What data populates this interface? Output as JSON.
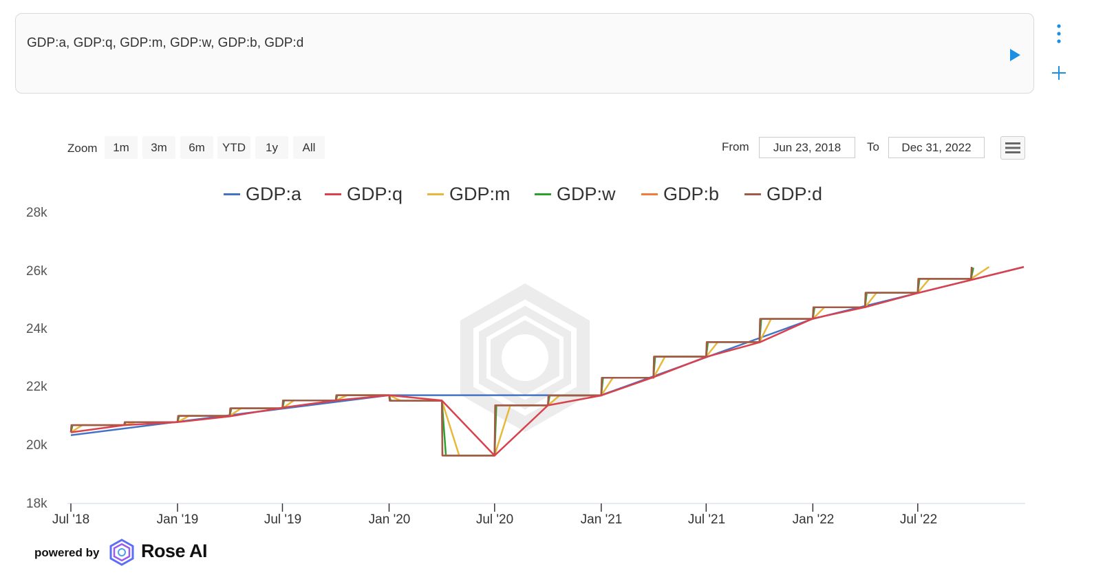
{
  "query": {
    "text": "GDP:a, GDP:q, GDP:m, GDP:w, GDP:b, GDP:d"
  },
  "toolbar": {
    "zoom_label": "Zoom",
    "zoom_buttons": [
      "1m",
      "3m",
      "6m",
      "YTD",
      "1y",
      "All"
    ],
    "from_label": "From",
    "from_value": "Jun 23, 2018",
    "to_label": "To",
    "to_value": "Dec 31, 2022"
  },
  "brand": {
    "powered_by": "powered by",
    "name": "Rose AI"
  },
  "icons": {
    "run": "play-icon",
    "side_menu": "kebab-icon",
    "add": "plus-icon",
    "chart_menu": "hamburger-icon",
    "logo": "rose-ai-logo",
    "watermark": "rose-ai-watermark"
  },
  "colors": {
    "accent": "#1a8fe3",
    "GDP:a": "#4472c4",
    "GDP:q": "#d9414c",
    "GDP:m": "#e8b83a",
    "GDP:w": "#2ca02c",
    "GDP:b": "#f07b3c",
    "GDP:d": "#a05a48"
  },
  "chart_data": {
    "type": "line",
    "title": "",
    "xlabel": "",
    "ylabel": "",
    "x_range": [
      "2018-07-01",
      "2022-12-31"
    ],
    "ylim": [
      18000,
      28000
    ],
    "y_ticks": [
      "18k",
      "20k",
      "22k",
      "24k",
      "26k",
      "28k"
    ],
    "x_ticks": [
      {
        "label": "Jul '18",
        "date": "2018-07-01"
      },
      {
        "label": "Jan '19",
        "date": "2019-01-01"
      },
      {
        "label": "Jul '19",
        "date": "2019-07-01"
      },
      {
        "label": "Jan '20",
        "date": "2020-01-01"
      },
      {
        "label": "Jul '20",
        "date": "2020-07-01"
      },
      {
        "label": "Jan '21",
        "date": "2021-01-01"
      },
      {
        "label": "Jul '21",
        "date": "2021-07-01"
      },
      {
        "label": "Jan '22",
        "date": "2022-01-01"
      },
      {
        "label": "Jul '22",
        "date": "2022-07-01"
      }
    ],
    "legend_position": "top-center",
    "grid": false,
    "series": [
      {
        "name": "GDP:a",
        "color": "#4472c4",
        "points": [
          [
            "2018-07-01",
            20350
          ],
          [
            "2020-01-01",
            21730
          ],
          [
            "2020-10-01",
            21730
          ],
          [
            "2021-01-01",
            21730
          ],
          [
            "2021-10-01",
            23700
          ],
          [
            "2022-01-01",
            24360
          ],
          [
            "2022-12-31",
            26150
          ]
        ]
      },
      {
        "name": "GDP:q",
        "color": "#d9414c",
        "points": [
          [
            "2018-07-01",
            20450
          ],
          [
            "2018-10-01",
            20700
          ],
          [
            "2019-01-01",
            20800
          ],
          [
            "2019-04-01",
            21000
          ],
          [
            "2019-07-01",
            21300
          ],
          [
            "2019-10-01",
            21550
          ],
          [
            "2020-01-01",
            21730
          ],
          [
            "2020-04-01",
            21550
          ],
          [
            "2020-07-01",
            19650
          ],
          [
            "2020-10-01",
            21380
          ],
          [
            "2021-01-01",
            21720
          ],
          [
            "2021-04-01",
            22350
          ],
          [
            "2021-07-01",
            23050
          ],
          [
            "2021-10-01",
            23550
          ],
          [
            "2022-01-01",
            24370
          ],
          [
            "2022-04-01",
            24760
          ],
          [
            "2022-07-01",
            25250
          ],
          [
            "2022-12-31",
            26150
          ]
        ]
      },
      {
        "name": "GDP:m",
        "color": "#e8b83a",
        "points": [
          [
            "2018-07-01",
            20450
          ],
          [
            "2018-07-21",
            20700
          ],
          [
            "2018-10-01",
            20700
          ],
          [
            "2018-10-21",
            20800
          ],
          [
            "2019-01-01",
            20800
          ],
          [
            "2019-01-21",
            21020
          ],
          [
            "2019-04-01",
            21020
          ],
          [
            "2019-04-21",
            21280
          ],
          [
            "2019-07-01",
            21280
          ],
          [
            "2019-07-21",
            21550
          ],
          [
            "2019-10-01",
            21550
          ],
          [
            "2019-10-21",
            21730
          ],
          [
            "2020-01-01",
            21730
          ],
          [
            "2020-01-21",
            21540
          ],
          [
            "2020-04-01",
            21540
          ],
          [
            "2020-05-01",
            19650
          ],
          [
            "2020-07-01",
            19650
          ],
          [
            "2020-07-28",
            21380
          ],
          [
            "2020-10-01",
            21380
          ],
          [
            "2020-10-21",
            21720
          ],
          [
            "2021-01-01",
            21720
          ],
          [
            "2021-01-21",
            22330
          ],
          [
            "2021-04-01",
            22330
          ],
          [
            "2021-04-21",
            23060
          ],
          [
            "2021-07-01",
            23060
          ],
          [
            "2021-07-21",
            23560
          ],
          [
            "2021-10-01",
            23560
          ],
          [
            "2021-10-21",
            24360
          ],
          [
            "2022-01-01",
            24360
          ],
          [
            "2022-01-21",
            24760
          ],
          [
            "2022-04-01",
            24760
          ],
          [
            "2022-04-21",
            25260
          ],
          [
            "2022-07-01",
            25260
          ],
          [
            "2022-07-21",
            25740
          ],
          [
            "2022-10-01",
            25740
          ],
          [
            "2022-11-01",
            26150
          ]
        ]
      },
      {
        "name": "GDP:w",
        "color": "#2ca02c",
        "points": [
          [
            "2018-07-01",
            20450
          ],
          [
            "2018-07-04",
            20700
          ],
          [
            "2018-10-01",
            20700
          ],
          [
            "2018-10-04",
            20800
          ],
          [
            "2019-01-01",
            20800
          ],
          [
            "2019-01-04",
            21020
          ],
          [
            "2019-04-01",
            21020
          ],
          [
            "2019-04-04",
            21280
          ],
          [
            "2019-07-01",
            21280
          ],
          [
            "2019-07-04",
            21550
          ],
          [
            "2019-10-01",
            21550
          ],
          [
            "2019-10-04",
            21730
          ],
          [
            "2020-01-01",
            21730
          ],
          [
            "2020-01-04",
            21540
          ],
          [
            "2020-04-01",
            21540
          ],
          [
            "2020-04-08",
            19650
          ],
          [
            "2020-07-01",
            19650
          ],
          [
            "2020-07-04",
            21380
          ],
          [
            "2020-10-01",
            21380
          ],
          [
            "2020-10-04",
            21720
          ],
          [
            "2021-01-01",
            21720
          ],
          [
            "2021-01-04",
            22330
          ],
          [
            "2021-04-01",
            22330
          ],
          [
            "2021-04-04",
            23060
          ],
          [
            "2021-07-01",
            23060
          ],
          [
            "2021-07-04",
            23560
          ],
          [
            "2021-10-01",
            23560
          ],
          [
            "2021-10-04",
            24360
          ],
          [
            "2022-01-01",
            24360
          ],
          [
            "2022-01-04",
            24760
          ],
          [
            "2022-04-01",
            24760
          ],
          [
            "2022-04-04",
            25260
          ],
          [
            "2022-07-01",
            25260
          ],
          [
            "2022-07-04",
            25740
          ],
          [
            "2022-10-01",
            25740
          ],
          [
            "2022-10-05",
            26120
          ]
        ]
      },
      {
        "name": "GDP:b",
        "color": "#f07b3c",
        "points": [
          [
            "2018-07-01",
            20450
          ],
          [
            "2018-07-02",
            20700
          ],
          [
            "2018-10-01",
            20700
          ],
          [
            "2018-10-02",
            20800
          ],
          [
            "2019-01-01",
            20800
          ],
          [
            "2019-01-02",
            21020
          ],
          [
            "2019-04-01",
            21020
          ],
          [
            "2019-04-02",
            21280
          ],
          [
            "2019-07-01",
            21280
          ],
          [
            "2019-07-02",
            21550
          ],
          [
            "2019-10-01",
            21550
          ],
          [
            "2019-10-02",
            21730
          ],
          [
            "2020-01-01",
            21730
          ],
          [
            "2020-01-02",
            21540
          ],
          [
            "2020-04-01",
            21540
          ],
          [
            "2020-04-02",
            19650
          ],
          [
            "2020-07-01",
            19650
          ],
          [
            "2020-07-02",
            21380
          ],
          [
            "2020-10-01",
            21380
          ],
          [
            "2020-10-02",
            21720
          ],
          [
            "2021-01-01",
            21720
          ],
          [
            "2021-01-02",
            22330
          ],
          [
            "2021-04-01",
            22330
          ],
          [
            "2021-04-02",
            23060
          ],
          [
            "2021-07-01",
            23060
          ],
          [
            "2021-07-02",
            23560
          ],
          [
            "2021-10-01",
            23560
          ],
          [
            "2021-10-02",
            24360
          ],
          [
            "2022-01-01",
            24360
          ],
          [
            "2022-01-02",
            24760
          ],
          [
            "2022-04-01",
            24760
          ],
          [
            "2022-04-02",
            25260
          ],
          [
            "2022-07-01",
            25260
          ],
          [
            "2022-07-02",
            25740
          ],
          [
            "2022-10-01",
            25740
          ],
          [
            "2022-10-02",
            26150
          ]
        ]
      },
      {
        "name": "GDP:d",
        "color": "#a05a48",
        "points": [
          [
            "2018-07-01",
            20450
          ],
          [
            "2018-07-02",
            20700
          ],
          [
            "2018-10-01",
            20700
          ],
          [
            "2018-10-02",
            20800
          ],
          [
            "2019-01-01",
            20800
          ],
          [
            "2019-01-02",
            21020
          ],
          [
            "2019-04-01",
            21020
          ],
          [
            "2019-04-02",
            21280
          ],
          [
            "2019-07-01",
            21280
          ],
          [
            "2019-07-02",
            21550
          ],
          [
            "2019-10-01",
            21550
          ],
          [
            "2019-10-02",
            21730
          ],
          [
            "2020-01-01",
            21730
          ],
          [
            "2020-01-02",
            21540
          ],
          [
            "2020-04-01",
            21540
          ],
          [
            "2020-04-02",
            19650
          ],
          [
            "2020-07-01",
            19650
          ],
          [
            "2020-07-02",
            21380
          ],
          [
            "2020-10-01",
            21380
          ],
          [
            "2020-10-02",
            21720
          ],
          [
            "2021-01-01",
            21720
          ],
          [
            "2021-01-02",
            22330
          ],
          [
            "2021-04-01",
            22330
          ],
          [
            "2021-04-02",
            23060
          ],
          [
            "2021-07-01",
            23060
          ],
          [
            "2021-07-02",
            23560
          ],
          [
            "2021-10-01",
            23560
          ],
          [
            "2021-10-02",
            24360
          ],
          [
            "2022-01-01",
            24360
          ],
          [
            "2022-01-02",
            24760
          ],
          [
            "2022-04-01",
            24760
          ],
          [
            "2022-04-02",
            25260
          ],
          [
            "2022-07-01",
            25260
          ],
          [
            "2022-07-02",
            25740
          ],
          [
            "2022-10-01",
            25740
          ],
          [
            "2022-10-02",
            26150
          ]
        ]
      }
    ]
  }
}
